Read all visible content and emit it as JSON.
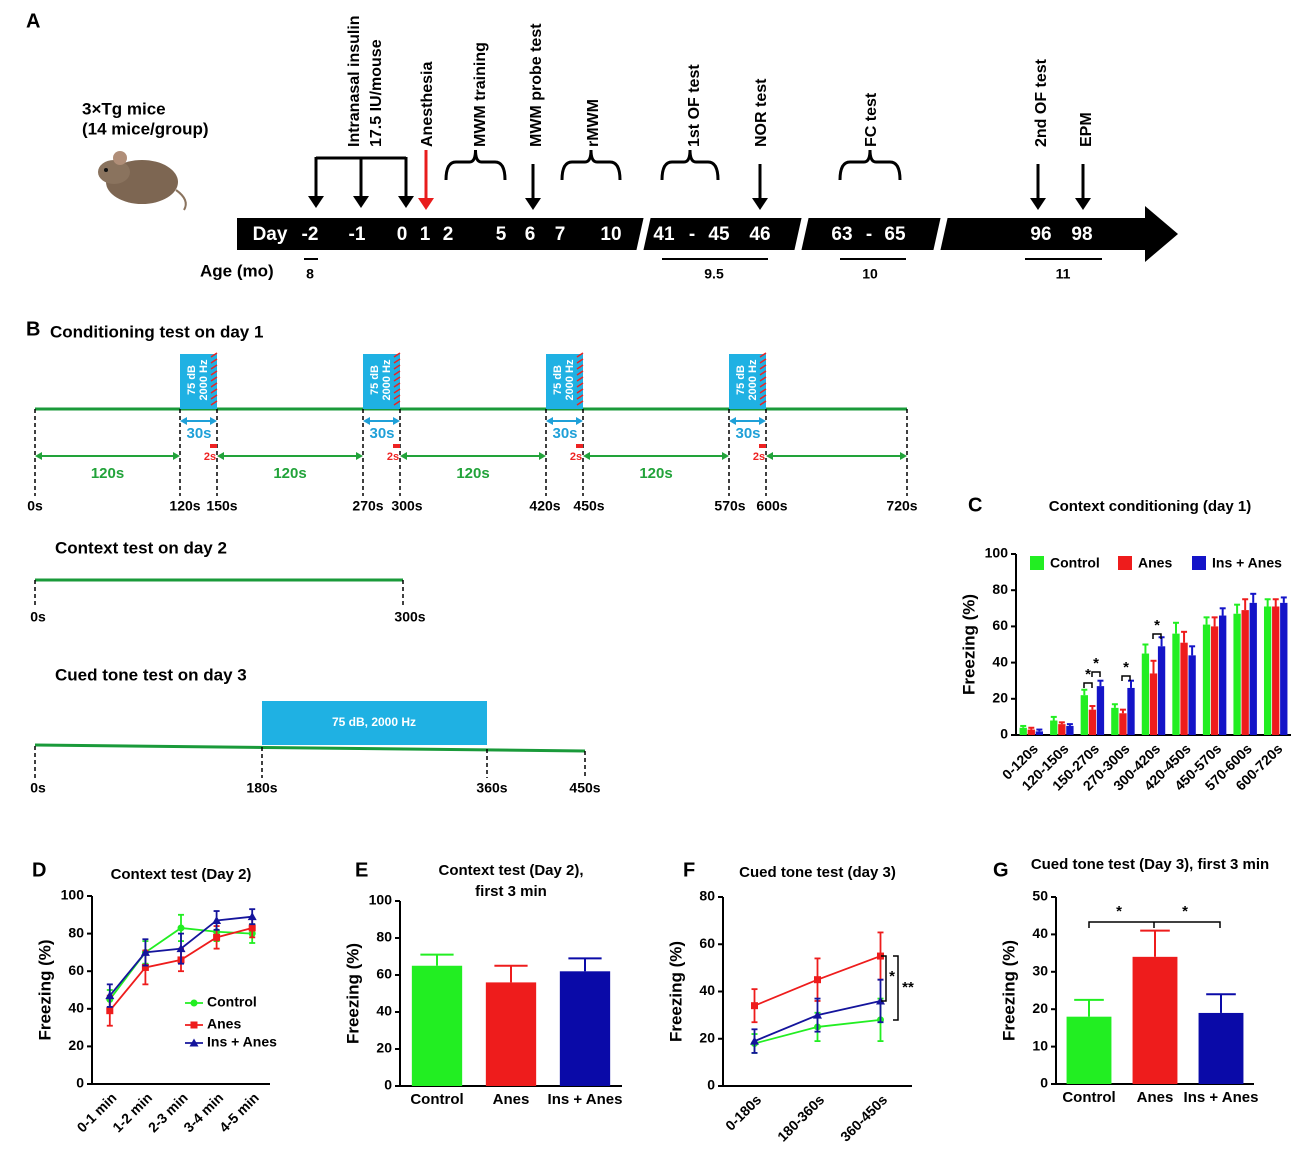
{
  "timeline": {
    "label": "A",
    "subject": [
      "3×Tg mice",
      "(14 mice/group)"
    ],
    "events": [
      [
        "Intranasal insulin",
        "17.5 IU/mouse"
      ],
      [
        "Anesthesia"
      ],
      [
        "MWM training"
      ],
      [
        "MWM probe test"
      ],
      [
        "rMWM"
      ],
      [
        "1st OF test"
      ],
      [
        "NOR test"
      ],
      [
        "FC test"
      ],
      [
        "2nd OF test"
      ],
      [
        "EPM"
      ]
    ],
    "days": [
      "Day",
      "-2",
      "-1",
      "0",
      "1",
      "2",
      "5",
      "6",
      "7",
      "10",
      "41",
      "-",
      "45",
      "46",
      "63",
      "-",
      "65",
      "96",
      "98"
    ],
    "age_label": "Age (mo)",
    "ages": [
      "8",
      "9.5",
      "10",
      "11"
    ]
  },
  "protocol": {
    "label": "B",
    "conditioning": {
      "title": "Conditioning test on day 1",
      "tone": [
        "75 dB",
        "2000 Hz"
      ],
      "tone_duration": "30s",
      "shock_duration": "2s",
      "interval": "120s",
      "times": [
        "0s",
        "120s",
        "150s",
        "270s",
        "300s",
        "420s",
        "450s",
        "570s",
        "600s",
        "720s"
      ]
    },
    "context": {
      "title": "Context test on day 2",
      "times": [
        "0s",
        "300s"
      ]
    },
    "cued": {
      "title": "Cued tone test on day 3",
      "tone": "75 dB, 2000 Hz",
      "times": [
        "0s",
        "180s",
        "360s",
        "450s"
      ]
    }
  },
  "chart_data": [
    {
      "type": "bar",
      "panel": "C",
      "title": "Context conditioning (day 1)",
      "ylabel": "Freezing (%)",
      "categories": [
        "0-120s",
        "120-150s",
        "150-270s",
        "270-300s",
        "300-420s",
        "420-450s",
        "450-570s",
        "570-600s",
        "600-720s"
      ],
      "series": [
        {
          "name": "Control",
          "color": "#22ee22",
          "values": [
            4,
            8,
            22,
            15,
            45,
            56,
            61,
            67,
            71
          ],
          "errors": [
            1,
            2,
            3,
            2,
            5,
            6,
            4,
            5,
            4
          ]
        },
        {
          "name": "Anes",
          "color": "#ee1c1c",
          "values": [
            3,
            6,
            14,
            12,
            34,
            51,
            60,
            69,
            71
          ],
          "errors": [
            1,
            1,
            2,
            2,
            7,
            6,
            5,
            6,
            4
          ]
        },
        {
          "name": "Ins + Anes",
          "color": "#1414c8",
          "values": [
            2,
            5,
            27,
            26,
            49,
            44,
            66,
            73,
            73
          ],
          "errors": [
            1,
            1,
            3,
            4,
            5,
            5,
            4,
            5,
            3
          ]
        }
      ],
      "ylim": [
        0,
        100
      ],
      "yticks": [
        0,
        20,
        40,
        60,
        80,
        100
      ],
      "legend": "upper left",
      "annotations": [
        "*",
        "*",
        "*",
        "*"
      ]
    },
    {
      "type": "line",
      "panel": "D",
      "title": "Context test (Day 2)",
      "ylabel": "Freezing (%)",
      "categories": [
        "0-1 min",
        "1-2 min",
        "2-3 min",
        "3-4 min",
        "4-5 min"
      ],
      "series": [
        {
          "name": "Control",
          "color": "#22ee22",
          "marker": "circle",
          "values": [
            45,
            70,
            83,
            81,
            80
          ],
          "errors": [
            5,
            6,
            7,
            5,
            5
          ]
        },
        {
          "name": "Anes",
          "color": "#ee1c1c",
          "marker": "square",
          "values": [
            39,
            62,
            66,
            78,
            83
          ],
          "errors": [
            8,
            9,
            6,
            6,
            5
          ]
        },
        {
          "name": "Ins + Anes",
          "color": "#14149c",
          "marker": "triangle",
          "values": [
            47,
            70,
            72,
            87,
            89
          ],
          "errors": [
            6,
            7,
            8,
            5,
            4
          ]
        }
      ],
      "ylim": [
        0,
        100
      ],
      "yticks": [
        0,
        20,
        40,
        60,
        80,
        100
      ],
      "legend": "lower right"
    },
    {
      "type": "bar",
      "panel": "E",
      "title": [
        "Context test (Day 2),",
        "first 3 min"
      ],
      "ylabel": "Freezing (%)",
      "categories": [
        "Control",
        "Anes",
        "Ins + Anes"
      ],
      "values": [
        65,
        56,
        62
      ],
      "errors": [
        6,
        9,
        7
      ],
      "colors": [
        "#22ee22",
        "#ee1c1c",
        "#0a0aa8"
      ],
      "ylim": [
        0,
        100
      ],
      "yticks": [
        0,
        20,
        40,
        60,
        80,
        100
      ]
    },
    {
      "type": "line",
      "panel": "F",
      "title": "Cued tone test (day 3)",
      "ylabel": "Freezing (%)",
      "categories": [
        "0-180s",
        "180-360s",
        "360-450s"
      ],
      "series": [
        {
          "name": "Control",
          "color": "#22ee22",
          "marker": "circle",
          "values": [
            18,
            25,
            28
          ],
          "errors": [
            4,
            6,
            9
          ]
        },
        {
          "name": "Anes",
          "color": "#ee1c1c",
          "marker": "square",
          "values": [
            34,
            45,
            55
          ],
          "errors": [
            7,
            9,
            10
          ]
        },
        {
          "name": "Ins + Anes",
          "color": "#14149c",
          "marker": "triangle",
          "values": [
            19,
            30,
            36
          ],
          "errors": [
            5,
            7,
            9
          ]
        }
      ],
      "ylim": [
        0,
        80
      ],
      "yticks": [
        0,
        20,
        40,
        60,
        80
      ],
      "annotations": [
        "*",
        "**"
      ]
    },
    {
      "type": "bar",
      "panel": "G",
      "title": "Cued tone test (Day 3), first 3 min",
      "ylabel": "Freezing (%)",
      "categories": [
        "Control",
        "Anes",
        "Ins + Anes"
      ],
      "values": [
        18,
        34,
        19
      ],
      "errors": [
        4.5,
        7,
        5
      ],
      "colors": [
        "#22ee22",
        "#ee1c1c",
        "#0a0aa8"
      ],
      "ylim": [
        0,
        50
      ],
      "yticks": [
        0,
        10,
        20,
        30,
        40,
        50
      ],
      "annotations": [
        "*",
        "*"
      ]
    }
  ]
}
